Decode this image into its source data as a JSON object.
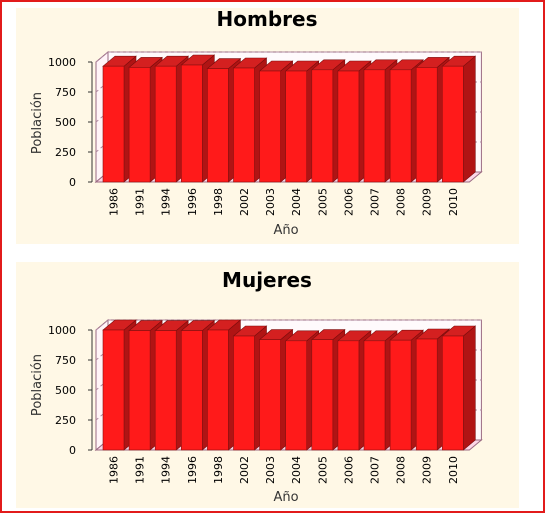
{
  "charts": [
    {
      "title": "Hombres",
      "xlabel": "Año",
      "ylabel": "Población",
      "yticks": [
        "0",
        "250",
        "500",
        "750",
        "1000"
      ]
    },
    {
      "title": "Mujeres",
      "xlabel": "Año",
      "ylabel": "Población",
      "yticks": [
        "0",
        "250",
        "500",
        "750",
        "1000"
      ]
    }
  ],
  "colors": {
    "bar_front": "#ff1a1a",
    "bar_top": "#d42020",
    "bar_side": "#b01414",
    "panel": "#fff8e6",
    "frame": "#e21b1b"
  },
  "chart_data": [
    {
      "type": "bar",
      "title": "Hombres",
      "xlabel": "Año",
      "ylabel": "Población",
      "ylim": [
        0,
        1000
      ],
      "grid": true,
      "categories": [
        "1986",
        "1991",
        "1994",
        "1996",
        "1998",
        "2002",
        "2003",
        "2004",
        "2005",
        "2006",
        "2007",
        "2008",
        "2009",
        "2010"
      ],
      "values": [
        965,
        955,
        965,
        975,
        945,
        950,
        925,
        925,
        935,
        925,
        935,
        935,
        955,
        965
      ]
    },
    {
      "type": "bar",
      "title": "Mujeres",
      "xlabel": "Año",
      "ylabel": "Población",
      "ylim": [
        0,
        1000
      ],
      "grid": true,
      "categories": [
        "1986",
        "1991",
        "1994",
        "1996",
        "1998",
        "2002",
        "2003",
        "2004",
        "2005",
        "2006",
        "2007",
        "2008",
        "2009",
        "2010"
      ],
      "values": [
        1000,
        995,
        995,
        995,
        1000,
        950,
        920,
        910,
        920,
        910,
        910,
        915,
        925,
        950
      ]
    }
  ]
}
